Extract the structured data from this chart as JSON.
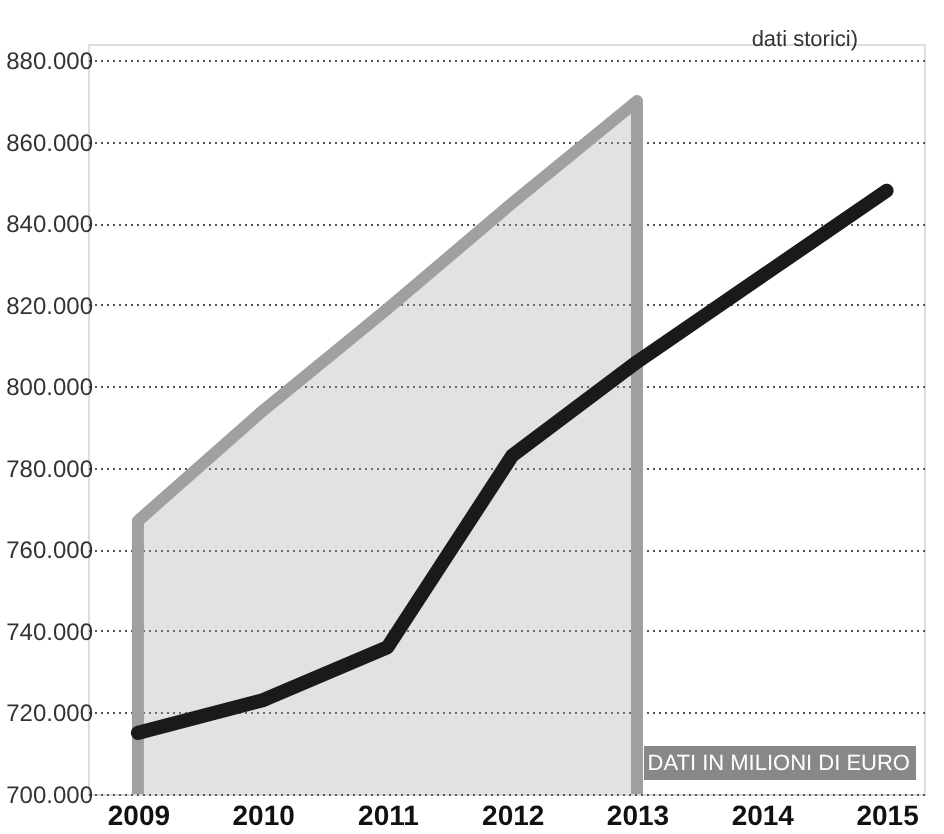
{
  "chart_data": {
    "type": "line",
    "x": [
      2009,
      2010,
      2011,
      2012,
      2013,
      2014,
      2015
    ],
    "series": [
      {
        "type": "area",
        "color": "#a0a0a0",
        "values": [
          767000,
          794000,
          819000,
          845000,
          870000,
          null,
          null
        ]
      },
      {
        "color": "#1a1a1a",
        "values": [
          715000,
          723000,
          736000,
          783000,
          806000,
          827000,
          848000
        ]
      }
    ],
    "xlim": [
      2008.6,
      2015.3
    ],
    "xticks": [
      2009,
      2010,
      2011,
      2012,
      2013,
      2014,
      2015
    ],
    "ylim": [
      700000,
      884000
    ],
    "yticks": [
      {
        "value": 700000,
        "label": "700.000"
      },
      {
        "value": 720000,
        "label": "720.000"
      },
      {
        "value": 740000,
        "label": "740.000"
      },
      {
        "value": 760000,
        "label": "760.000"
      },
      {
        "value": 780000,
        "label": "780.000"
      },
      {
        "value": 800000,
        "label": "800.000"
      },
      {
        "value": 820000,
        "label": "820.000"
      },
      {
        "value": 840000,
        "label": "840.000"
      },
      {
        "value": 860000,
        "label": "860.000"
      },
      {
        "value": 880000,
        "label": "880.000"
      }
    ],
    "grid": "y",
    "annotations": [
      "dati storici)",
      "DATI IN MILIONI DI EURO"
    ]
  }
}
